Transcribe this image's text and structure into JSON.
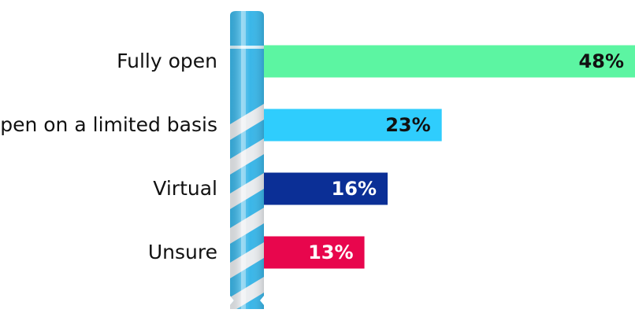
{
  "chart_data": {
    "type": "bar",
    "orientation": "horizontal",
    "categories": [
      "Fully open",
      "Open on a limited basis",
      "Virtual",
      "Unsure"
    ],
    "values": [
      48,
      23,
      16,
      13
    ],
    "value_labels": [
      "48%",
      "23%",
      "16%",
      "13%"
    ],
    "colors": [
      "#5cf5a2",
      "#2fcdfd",
      "#0b2f96",
      "#e8064d"
    ],
    "label_colors": [
      "#111111",
      "#111111",
      "#ffffff",
      "#ffffff"
    ],
    "unit": "%",
    "xlim": [
      0,
      48
    ],
    "grid": false,
    "legend": "none",
    "decoration": "blue-white striped straw as baseline"
  }
}
